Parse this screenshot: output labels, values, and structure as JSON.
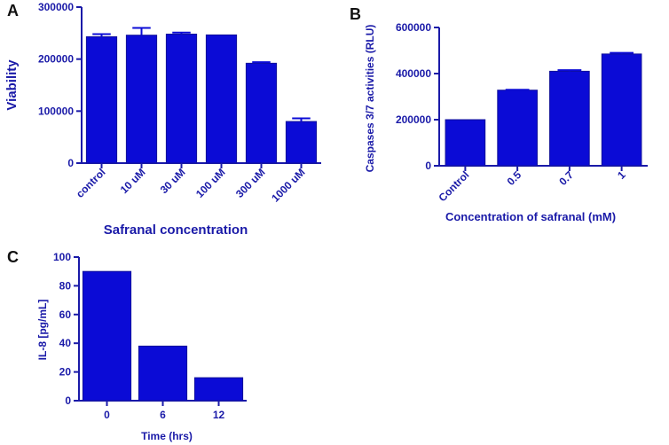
{
  "chart_data": [
    {
      "id": "A",
      "type": "bar",
      "panel_label": "A",
      "title": "",
      "xlabel": "Safranal concentration",
      "ylabel": "Viability",
      "categories": [
        "control",
        "10 uM",
        "30 uM",
        "100 uM",
        "300 uM",
        "1000 uM"
      ],
      "values": [
        243000,
        246000,
        248000,
        246500,
        192000,
        80000
      ],
      "errors": [
        5000,
        14000,
        3000,
        0,
        2000,
        6000
      ],
      "ylim": [
        0,
        300000
      ],
      "yticks": [
        0,
        100000,
        200000,
        300000
      ],
      "ytick_labels": [
        "0",
        "100000",
        "200000",
        "300000"
      ],
      "color": "#0b0bd6",
      "grid": false,
      "xtick_rotation": -45
    },
    {
      "id": "B",
      "type": "bar",
      "panel_label": "B",
      "title": "",
      "xlabel": "Concentration of safranal (mM)",
      "ylabel": "Caspases 3/7 activities (RLU)",
      "categories": [
        "Control",
        "0.5",
        "0.7",
        "1"
      ],
      "values": [
        200000,
        328000,
        410000,
        485000
      ],
      "errors": [
        0,
        2000,
        5000,
        5000
      ],
      "ylim": [
        0,
        600000
      ],
      "yticks": [
        0,
        200000,
        400000,
        600000
      ],
      "ytick_labels": [
        "0",
        "200000",
        "400000",
        "600000"
      ],
      "color": "#0b0bd6",
      "grid": false,
      "xtick_rotation": -45
    },
    {
      "id": "C",
      "type": "bar",
      "panel_label": "C",
      "title": "",
      "xlabel": "Time (hrs)",
      "ylabel": "IL-8 [pg/mL]",
      "categories": [
        "0",
        "6",
        "12"
      ],
      "values": [
        90,
        38,
        16
      ],
      "errors": [
        0,
        0,
        0
      ],
      "ylim": [
        0,
        100
      ],
      "yticks": [
        0,
        20,
        40,
        60,
        80,
        100
      ],
      "ytick_labels": [
        "0",
        "20",
        "40",
        "60",
        "80",
        "100"
      ],
      "color": "#0b0bd6",
      "grid": false,
      "xtick_rotation": 0
    }
  ]
}
